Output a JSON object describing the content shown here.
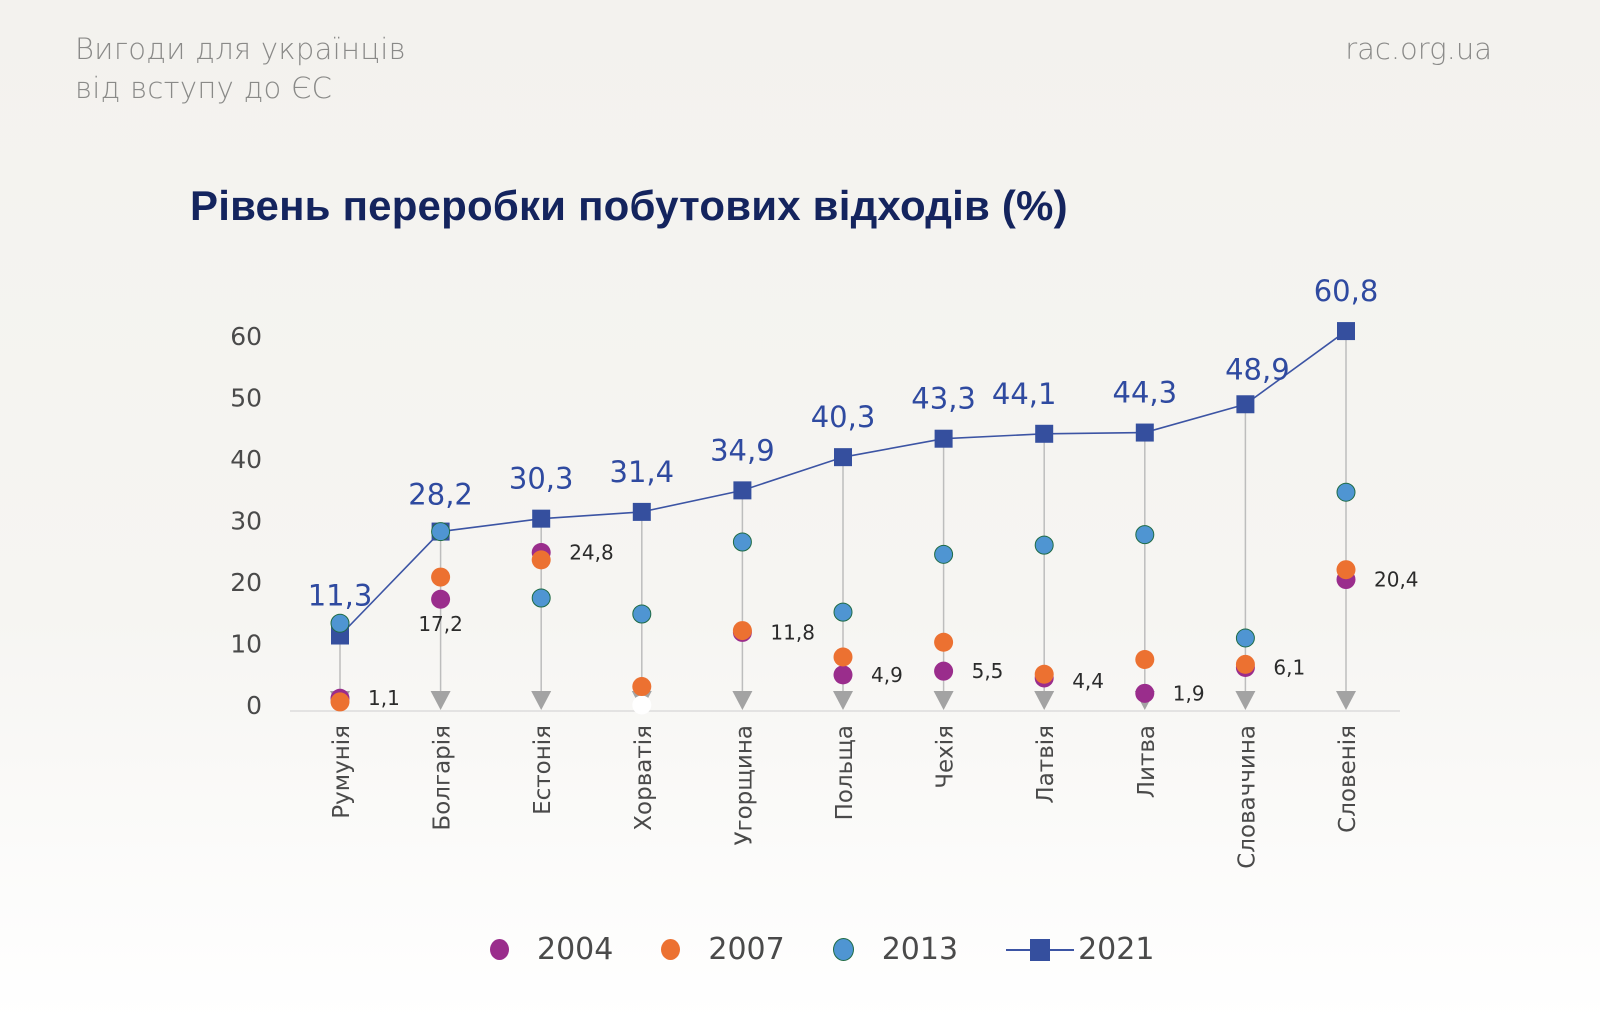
{
  "header": {
    "subtitle_line1": "Вигоди для українців",
    "subtitle_line2": "від вступу до ЄС",
    "site": "rac.org.ua"
  },
  "colors": {
    "s2004": "#9a2d8c",
    "s2007": "#ec7131",
    "s2013": "#4f95d2",
    "s2013_stroke": "#1f6b45",
    "s2021": "#354f9e",
    "title": "#14245e",
    "stem": "#bdbdbd",
    "arrow": "#a3a3a3"
  },
  "chart_data": {
    "type": "scatter",
    "title": "Рівень переробки побутових відходів (%)",
    "xlabel": "",
    "ylabel": "",
    "ylim": [
      0,
      60
    ],
    "yticks": [
      "0",
      "10",
      "20",
      "30",
      "40",
      "50",
      "60"
    ],
    "yticks_values": [
      0,
      10,
      20,
      30,
      40,
      50,
      60
    ],
    "grid": false,
    "legend_position": "bottom",
    "categories": [
      "Румунія",
      "Болгарія",
      "Естонія",
      "Хорватія",
      "Угорщина",
      "Польща",
      "Чехія",
      "Латвія",
      "Литва",
      "Словаччина",
      "Словенія"
    ],
    "series": [
      {
        "name": "2004",
        "key": "s2004",
        "marker": "circle",
        "values": [
          1.1,
          17.2,
          24.8,
          0,
          11.8,
          4.9,
          5.5,
          4.4,
          1.9,
          6.1,
          20.4
        ],
        "labels": [
          "1,1",
          "17,2",
          "24,8",
          "",
          "11,8",
          "4,9",
          "5,5",
          "4,4",
          "1,9",
          "6,1",
          "20,4"
        ]
      },
      {
        "name": "2007",
        "key": "s2007",
        "marker": "circle",
        "values": [
          0.5,
          20.8,
          23.6,
          3.0,
          12.1,
          7.8,
          10.2,
          5.0,
          7.4,
          6.6,
          22.0
        ]
      },
      {
        "name": "2013",
        "key": "s2013",
        "marker": "circle",
        "values": [
          13.3,
          28.2,
          17.4,
          14.8,
          26.5,
          15.1,
          24.5,
          26.0,
          27.7,
          10.9,
          34.6
        ]
      },
      {
        "name": "2021",
        "key": "s2021",
        "marker": "square-line",
        "values": [
          11.3,
          28.2,
          30.3,
          31.4,
          34.9,
          40.3,
          43.3,
          44.1,
          44.3,
          48.9,
          60.8
        ],
        "labels": [
          "11,3",
          "28,2",
          "30,3",
          "31,4",
          "34,9",
          "40,3",
          "43,3",
          "44,1",
          "44,3",
          "48,9",
          "60,8"
        ]
      }
    ],
    "legend": [
      "2004",
      "2007",
      "2013",
      "2021"
    ]
  }
}
